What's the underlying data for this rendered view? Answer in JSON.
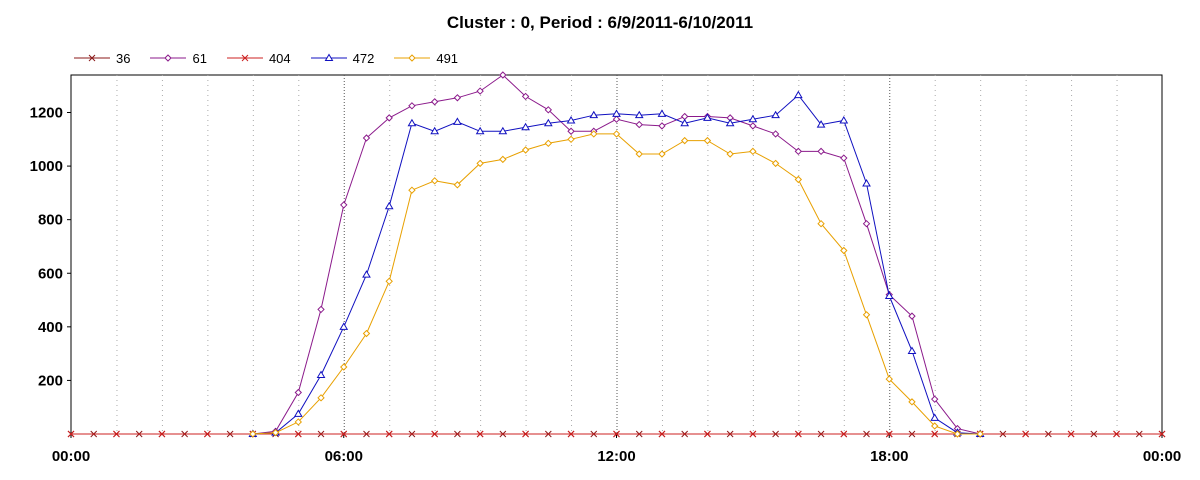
{
  "chart_data": {
    "type": "line",
    "title": "Cluster : 0, Period : 6/9/2011-6/10/2011",
    "xlabel": "",
    "ylabel": "",
    "x_range_hours": [
      0,
      24
    ],
    "ylim": [
      0,
      1340
    ],
    "x_tick_labels": [
      "00:00",
      "06:00",
      "12:00",
      "18:00",
      "00:00"
    ],
    "x_tick_hours": [
      0,
      6,
      12,
      18,
      24
    ],
    "y_ticks": [
      200,
      400,
      600,
      800,
      1000,
      1200
    ],
    "grid": "vertical dotted",
    "legend_placement": "top-left",
    "series": [
      {
        "name": "36",
        "color": "#8b1a1a",
        "marker": "x",
        "points": [
          [
            0,
            0
          ],
          [
            0.5,
            0
          ],
          [
            1,
            0
          ],
          [
            1.5,
            0
          ],
          [
            2,
            0
          ],
          [
            2.5,
            0
          ],
          [
            3,
            0
          ],
          [
            3.5,
            0
          ],
          [
            4,
            0
          ],
          [
            4.5,
            0
          ],
          [
            5,
            0
          ],
          [
            5.5,
            0
          ],
          [
            6,
            0
          ],
          [
            6.5,
            0
          ],
          [
            7,
            0
          ],
          [
            7.5,
            0
          ],
          [
            8,
            0
          ],
          [
            8.5,
            0
          ],
          [
            9,
            0
          ],
          [
            9.5,
            0
          ],
          [
            10,
            0
          ],
          [
            10.5,
            0
          ],
          [
            11,
            0
          ],
          [
            11.5,
            0
          ],
          [
            12,
            0
          ],
          [
            12.5,
            0
          ],
          [
            13,
            0
          ],
          [
            13.5,
            0
          ],
          [
            14,
            0
          ],
          [
            14.5,
            0
          ],
          [
            15,
            0
          ],
          [
            15.5,
            0
          ],
          [
            16,
            0
          ],
          [
            16.5,
            0
          ],
          [
            17,
            0
          ],
          [
            17.5,
            0
          ],
          [
            18,
            0
          ],
          [
            18.5,
            0
          ],
          [
            19,
            0
          ],
          [
            19.5,
            0
          ],
          [
            20,
            0
          ],
          [
            20.5,
            0
          ],
          [
            21,
            0
          ],
          [
            21.5,
            0
          ],
          [
            22,
            0
          ],
          [
            22.5,
            0
          ],
          [
            23,
            0
          ],
          [
            23.5,
            0
          ],
          [
            24,
            0
          ]
        ]
      },
      {
        "name": "61",
        "color": "#8b1a8b",
        "marker": "diamond",
        "points": [
          [
            4,
            0
          ],
          [
            4.5,
            10
          ],
          [
            5,
            155
          ],
          [
            5.5,
            465
          ],
          [
            6,
            855
          ],
          [
            6.5,
            1105
          ],
          [
            7,
            1180
          ],
          [
            7.5,
            1225
          ],
          [
            8,
            1240
          ],
          [
            8.5,
            1255
          ],
          [
            9,
            1280
          ],
          [
            9.5,
            1340
          ],
          [
            10,
            1260
          ],
          [
            10.5,
            1210
          ],
          [
            11,
            1130
          ],
          [
            11.5,
            1130
          ],
          [
            12,
            1175
          ],
          [
            12.5,
            1155
          ],
          [
            13,
            1150
          ],
          [
            13.5,
            1185
          ],
          [
            14,
            1185
          ],
          [
            14.5,
            1180
          ],
          [
            15,
            1150
          ],
          [
            15.5,
            1120
          ],
          [
            16,
            1055
          ],
          [
            16.5,
            1055
          ],
          [
            17,
            1030
          ],
          [
            17.5,
            785
          ],
          [
            18,
            520
          ],
          [
            18.5,
            440
          ],
          [
            19,
            130
          ],
          [
            19.5,
            20
          ],
          [
            20,
            0
          ]
        ]
      },
      {
        "name": "404",
        "color": "#cc2020",
        "marker": "x",
        "points": [
          [
            0,
            0
          ],
          [
            1,
            0
          ],
          [
            2,
            0
          ],
          [
            3,
            0
          ],
          [
            4,
            0
          ],
          [
            5,
            0
          ],
          [
            6,
            0
          ],
          [
            7,
            0
          ],
          [
            8,
            0
          ],
          [
            9,
            0
          ],
          [
            10,
            0
          ],
          [
            11,
            0
          ],
          [
            12,
            0
          ],
          [
            13,
            0
          ],
          [
            14,
            0
          ],
          [
            15,
            0
          ],
          [
            16,
            0
          ],
          [
            17,
            0
          ],
          [
            18,
            0
          ],
          [
            19,
            0
          ],
          [
            20,
            0
          ],
          [
            21,
            0
          ],
          [
            22,
            0
          ],
          [
            23,
            0
          ],
          [
            24,
            0
          ]
        ]
      },
      {
        "name": "472",
        "color": "#1010c0",
        "marker": "triangle",
        "points": [
          [
            4,
            0
          ],
          [
            4.5,
            5
          ],
          [
            5,
            75
          ],
          [
            5.5,
            220
          ],
          [
            6,
            400
          ],
          [
            6.5,
            595
          ],
          [
            7,
            850
          ],
          [
            7.5,
            1160
          ],
          [
            8,
            1130
          ],
          [
            8.5,
            1165
          ],
          [
            9,
            1130
          ],
          [
            9.5,
            1130
          ],
          [
            10,
            1145
          ],
          [
            10.5,
            1160
          ],
          [
            11,
            1170
          ],
          [
            11.5,
            1190
          ],
          [
            12,
            1195
          ],
          [
            12.5,
            1190
          ],
          [
            13,
            1195
          ],
          [
            13.5,
            1160
          ],
          [
            14,
            1180
          ],
          [
            14.5,
            1160
          ],
          [
            15,
            1175
          ],
          [
            15.5,
            1190
          ],
          [
            16,
            1265
          ],
          [
            16.5,
            1155
          ],
          [
            17,
            1170
          ],
          [
            17.5,
            935
          ],
          [
            18,
            515
          ],
          [
            18.5,
            310
          ],
          [
            19,
            60
          ],
          [
            19.5,
            5
          ],
          [
            20,
            0
          ]
        ]
      },
      {
        "name": "491",
        "color": "#e8a000",
        "marker": "diamond",
        "points": [
          [
            4,
            0
          ],
          [
            4.5,
            5
          ],
          [
            5,
            45
          ],
          [
            5.5,
            135
          ],
          [
            6,
            250
          ],
          [
            6.5,
            375
          ],
          [
            7,
            570
          ],
          [
            7.5,
            910
          ],
          [
            8,
            945
          ],
          [
            8.5,
            930
          ],
          [
            9,
            1010
          ],
          [
            9.5,
            1025
          ],
          [
            10,
            1060
          ],
          [
            10.5,
            1085
          ],
          [
            11,
            1100
          ],
          [
            11.5,
            1120
          ],
          [
            12,
            1120
          ],
          [
            12.5,
            1045
          ],
          [
            13,
            1045
          ],
          [
            13.5,
            1095
          ],
          [
            14,
            1095
          ],
          [
            14.5,
            1045
          ],
          [
            15,
            1055
          ],
          [
            15.5,
            1010
          ],
          [
            16,
            950
          ],
          [
            16.5,
            785
          ],
          [
            17,
            685
          ],
          [
            17.5,
            445
          ],
          [
            18,
            205
          ],
          [
            18.5,
            120
          ],
          [
            19,
            30
          ],
          [
            19.5,
            0
          ],
          [
            20,
            0
          ]
        ]
      }
    ]
  }
}
